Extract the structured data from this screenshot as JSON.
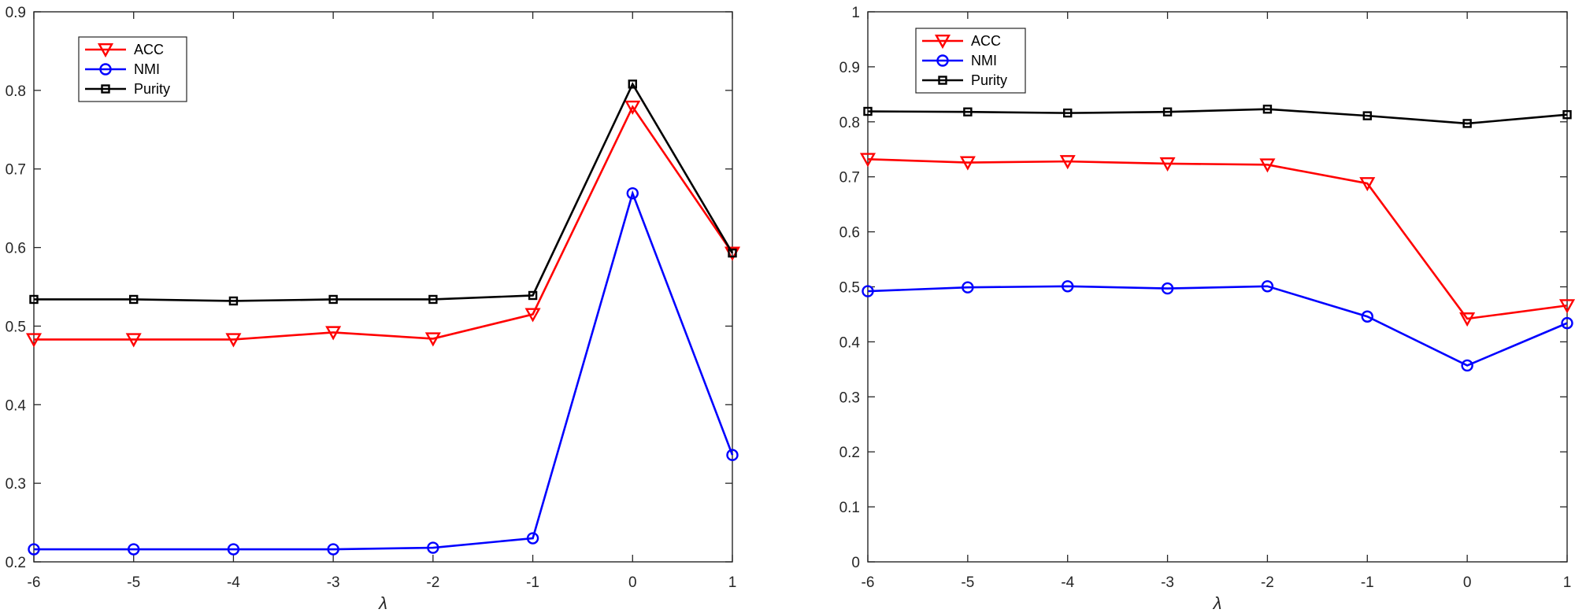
{
  "colors": {
    "acc": "#ff0000",
    "nmi": "#0000ff",
    "purity": "#000000",
    "axis": "#262626"
  },
  "chart_data": [
    {
      "type": "line",
      "x": [
        -6,
        -5,
        -4,
        -3,
        -2,
        -1,
        0,
        1
      ],
      "xlim": [
        -6,
        1
      ],
      "ylim": [
        0.2,
        0.9
      ],
      "xticks": [
        "-6",
        "-5",
        "-4",
        "-3",
        "-2",
        "-1",
        "0",
        "1"
      ],
      "yticks": [
        "0.2",
        "0.3",
        "0.4",
        "0.5",
        "0.6",
        "0.7",
        "0.8",
        "0.9"
      ],
      "ytick_values": [
        0.2,
        0.3,
        0.4,
        0.5,
        0.6,
        0.7,
        0.8,
        0.9
      ],
      "xlabel": "λ",
      "legend_position": "top-left",
      "series": [
        {
          "name": "ACC",
          "marker": "triangle-down",
          "values": [
            0.483,
            0.483,
            0.483,
            0.492,
            0.484,
            0.515,
            0.779,
            0.593
          ]
        },
        {
          "name": "NMI",
          "marker": "circle",
          "values": [
            0.216,
            0.216,
            0.216,
            0.216,
            0.218,
            0.23,
            0.669,
            0.336
          ]
        },
        {
          "name": "Purity",
          "marker": "square",
          "values": [
            0.534,
            0.534,
            0.532,
            0.534,
            0.534,
            0.539,
            0.808,
            0.593
          ]
        }
      ]
    },
    {
      "type": "line",
      "x": [
        -6,
        -5,
        -4,
        -3,
        -2,
        -1,
        0,
        1
      ],
      "xlim": [
        -6,
        1
      ],
      "ylim": [
        0,
        1
      ],
      "xticks": [
        "-6",
        "-5",
        "-4",
        "-3",
        "-2",
        "-1",
        "0",
        "1"
      ],
      "yticks": [
        "0",
        "0.1",
        "0.2",
        "0.3",
        "0.4",
        "0.5",
        "0.6",
        "0.7",
        "0.8",
        "0.9",
        "1"
      ],
      "ytick_values": [
        0,
        0.1,
        0.2,
        0.3,
        0.4,
        0.5,
        0.6,
        0.7,
        0.8,
        0.9,
        1
      ],
      "xlabel": "λ",
      "legend_position": "top-left",
      "series": [
        {
          "name": "ACC",
          "marker": "triangle-down",
          "values": [
            0.732,
            0.726,
            0.728,
            0.724,
            0.722,
            0.688,
            0.442,
            0.466
          ]
        },
        {
          "name": "NMI",
          "marker": "circle",
          "values": [
            0.492,
            0.499,
            0.501,
            0.497,
            0.501,
            0.446,
            0.357,
            0.434
          ]
        },
        {
          "name": "Purity",
          "marker": "square",
          "values": [
            0.819,
            0.818,
            0.816,
            0.818,
            0.823,
            0.811,
            0.797,
            0.813
          ]
        }
      ]
    }
  ]
}
